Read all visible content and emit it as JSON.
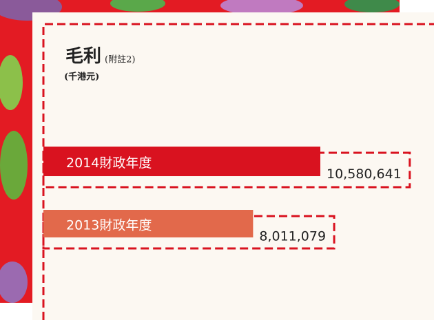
{
  "chart_data": {
    "type": "bar",
    "orientation": "horizontal",
    "title": "毛利",
    "title_note": "(附註2)",
    "subtitle": "(千港元)",
    "categories": [
      "2014財政年度",
      "2013財政年度"
    ],
    "values": [
      10580641,
      8011079
    ],
    "value_labels": [
      "10,580,641",
      "8,011,079"
    ],
    "colors": [
      "#d9121f",
      "#e2694b"
    ]
  }
}
